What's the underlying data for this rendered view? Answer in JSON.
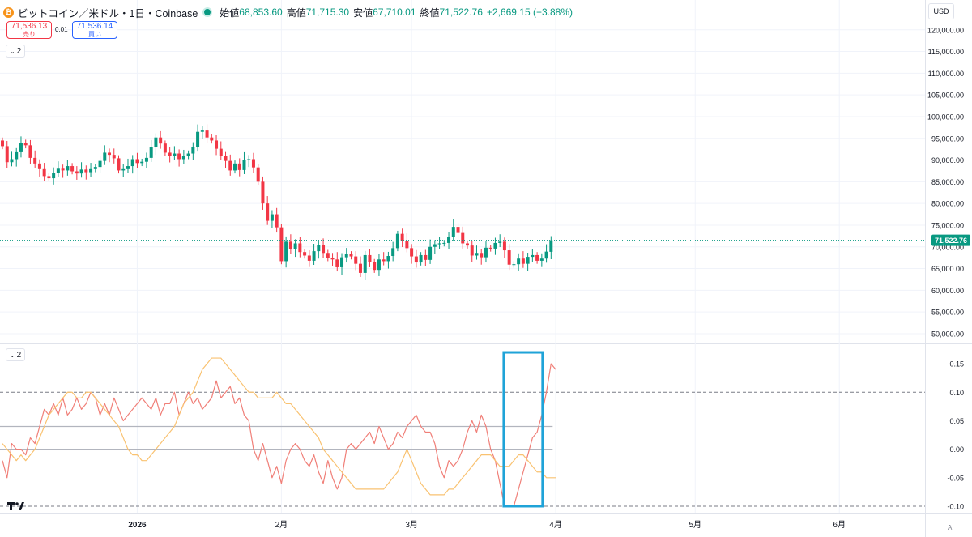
{
  "header": {
    "coin_icon": "bitcoin-icon",
    "symbol": "ビットコイン／米ドル・1日・Coinbase",
    "open_label": "始値",
    "open": "68,853.60",
    "high_label": "高値",
    "high": "71,715.30",
    "low_label": "安値",
    "low": "67,710.01",
    "close_label": "終値",
    "close": "71,522.76",
    "change": "+2,669.15 (+3.88%)"
  },
  "trade": {
    "sell_price": "71,536.13",
    "sell_label": "売り",
    "spread": "0.01",
    "buy_price": "71,536.14",
    "buy_label": "買い"
  },
  "pane_tags": {
    "main": "2",
    "indicator": "2"
  },
  "currency": "USD",
  "auto_label": "A",
  "colors": {
    "up": "#089981",
    "down": "#f23645",
    "osc_fast": "#f07f78",
    "osc_slow": "#f9c271",
    "highlight": "#1fa3d8"
  },
  "chart_data": [
    {
      "type": "candlestick",
      "price_axis_ticks": [
        "120,000.00",
        "115,000.00",
        "110,000.00",
        "105,000.00",
        "100,000.00",
        "95,000.00",
        "90,000.00",
        "85,000.00",
        "80,000.00",
        "75,000.00",
        "70,000.00",
        "65,000.00",
        "60,000.00",
        "55,000.00",
        "50,000.00"
      ],
      "ylim": [
        48500,
        123500
      ],
      "last_price": 71522.76,
      "last_price_label": "71,522.76",
      "time_axis_labels": [
        {
          "label": "2026",
          "index": 29
        },
        {
          "label": "2月",
          "index": 60
        },
        {
          "label": "3月",
          "index": 88
        },
        {
          "label": "4月",
          "index": 119
        },
        {
          "label": "5月",
          "index": 149
        },
        {
          "label": "6月",
          "index": 180
        }
      ],
      "closes": [
        93200,
        89500,
        90200,
        91800,
        94000,
        93400,
        90500,
        89200,
        87900,
        86300,
        85800,
        87100,
        88000,
        87600,
        88600,
        87400,
        86900,
        87800,
        87200,
        87900,
        88400,
        89800,
        91700,
        91200,
        90400,
        87600,
        87900,
        88600,
        90200,
        89300,
        89600,
        90500,
        92900,
        95200,
        93800,
        91700,
        90900,
        91500,
        90200,
        90900,
        91500,
        92900,
        96500,
        96800,
        95200,
        94500,
        92600,
        90900,
        89800,
        87600,
        89200,
        87700,
        90100,
        90200,
        88300,
        85000,
        80000,
        76000,
        77500,
        74500,
        66700,
        71200,
        69400,
        70800,
        68800,
        68000,
        66800,
        69000,
        70500,
        68600,
        67400,
        67100,
        65300,
        67600,
        68300,
        67800,
        66100,
        64000,
        68100,
        66500,
        64700,
        67100,
        66700,
        67900,
        69700,
        73000,
        71400,
        69700,
        67800,
        66400,
        68100,
        67000,
        70000,
        70600,
        70800,
        70900,
        72300,
        74600,
        73200,
        70800,
        70300,
        68000,
        68600,
        67600,
        69800,
        69600,
        70900,
        71200,
        69200,
        65900,
        66000,
        67300,
        66100,
        67700,
        68100,
        66800,
        67300,
        68900,
        71523
      ],
      "opens": [
        94500,
        93200,
        89500,
        90200,
        91800,
        94000,
        93400,
        90500,
        89200,
        87900,
        86300,
        85800,
        87100,
        88000,
        87600,
        88600,
        87400,
        86900,
        87800,
        87200,
        87900,
        88400,
        89800,
        91700,
        91200,
        90400,
        87600,
        87900,
        88600,
        90200,
        89300,
        89600,
        90500,
        92900,
        95200,
        93800,
        91700,
        90900,
        91500,
        90200,
        90900,
        91500,
        92900,
        96500,
        96800,
        95200,
        94500,
        92600,
        90900,
        89800,
        87600,
        89200,
        87700,
        90100,
        90200,
        88300,
        85000,
        80000,
        76000,
        77500,
        74500,
        66700,
        71200,
        69400,
        70800,
        68800,
        68000,
        66800,
        69000,
        70500,
        68600,
        67400,
        67100,
        65300,
        67600,
        68300,
        67800,
        66100,
        64000,
        68100,
        66500,
        64700,
        67100,
        66700,
        67900,
        69700,
        73000,
        71400,
        69700,
        67800,
        66400,
        68100,
        67000,
        70000,
        70600,
        70800,
        70900,
        72300,
        74600,
        73200,
        70800,
        70300,
        68000,
        68600,
        67600,
        69800,
        69600,
        70900,
        71200,
        69200,
        65900,
        66000,
        67300,
        66100,
        67700,
        68100,
        66800,
        67300,
        68854
      ]
    },
    {
      "type": "line",
      "axis_ticks": [
        "0.15",
        "0.10",
        "0.05",
        "0.00",
        "-0.05",
        "-0.10"
      ],
      "ylim": [
        -0.11,
        0.18
      ],
      "reference_lines": [
        0.1,
        0.04,
        0.0,
        -0.1
      ],
      "series": [
        {
          "values": [
            -0.02,
            -0.05,
            0.01,
            0.0,
            0.0,
            -0.01,
            0.02,
            0.01,
            0.04,
            0.07,
            0.06,
            0.08,
            0.06,
            0.09,
            0.06,
            0.07,
            0.09,
            0.07,
            0.08,
            0.1,
            0.09,
            0.06,
            0.08,
            0.06,
            0.09,
            0.07,
            0.05,
            0.06,
            0.07,
            0.08,
            0.09,
            0.08,
            0.07,
            0.09,
            0.06,
            0.08,
            0.08,
            0.1,
            0.06,
            0.08,
            0.1,
            0.08,
            0.09,
            0.07,
            0.08,
            0.09,
            0.12,
            0.09,
            0.1,
            0.11,
            0.08,
            0.09,
            0.06,
            0.05,
            0.0,
            -0.02,
            0.01,
            -0.02,
            -0.05,
            -0.03,
            -0.06,
            -0.02,
            0.0,
            0.01,
            0.0,
            -0.02,
            -0.03,
            -0.01,
            -0.04,
            -0.06,
            -0.02,
            -0.05,
            -0.07,
            -0.05,
            0.0,
            0.01,
            0.0,
            0.01,
            0.02,
            0.03,
            0.01,
            0.04,
            0.02,
            0.0,
            0.01,
            0.03,
            0.02,
            0.04,
            0.05,
            0.06,
            0.04,
            0.03,
            0.03,
            0.01,
            -0.03,
            -0.05,
            -0.02,
            -0.03,
            -0.02,
            0.0,
            0.03,
            0.05,
            0.03,
            0.06,
            0.04,
            0.0,
            -0.02,
            -0.06,
            -0.1,
            -0.1,
            -0.1,
            -0.07,
            -0.04,
            -0.01,
            0.02,
            0.03,
            0.06,
            0.1,
            0.15,
            0.14
          ],
          "color": "#f07f78"
        },
        {
          "values": [
            0.01,
            0.0,
            -0.01,
            -0.02,
            -0.01,
            -0.02,
            -0.01,
            0.0,
            0.02,
            0.04,
            0.06,
            0.07,
            0.08,
            0.09,
            0.1,
            0.1,
            0.09,
            0.09,
            0.1,
            0.1,
            0.09,
            0.08,
            0.07,
            0.06,
            0.05,
            0.04,
            0.02,
            0.0,
            -0.01,
            -0.01,
            -0.02,
            -0.02,
            -0.01,
            0.0,
            0.01,
            0.02,
            0.03,
            0.04,
            0.06,
            0.08,
            0.09,
            0.1,
            0.12,
            0.14,
            0.15,
            0.16,
            0.16,
            0.16,
            0.15,
            0.14,
            0.13,
            0.12,
            0.11,
            0.1,
            0.1,
            0.09,
            0.09,
            0.09,
            0.09,
            0.1,
            0.09,
            0.08,
            0.08,
            0.07,
            0.06,
            0.05,
            0.04,
            0.03,
            0.02,
            0.0,
            -0.01,
            -0.02,
            -0.03,
            -0.04,
            -0.05,
            -0.06,
            -0.07,
            -0.07,
            -0.07,
            -0.07,
            -0.07,
            -0.07,
            -0.07,
            -0.06,
            -0.05,
            -0.04,
            -0.02,
            0.0,
            -0.02,
            -0.04,
            -0.06,
            -0.07,
            -0.08,
            -0.08,
            -0.08,
            -0.08,
            -0.07,
            -0.07,
            -0.06,
            -0.05,
            -0.04,
            -0.03,
            -0.02,
            -0.01,
            -0.01,
            -0.01,
            -0.02,
            -0.03,
            -0.03,
            -0.03,
            -0.02,
            -0.01,
            -0.01,
            -0.02,
            -0.03,
            -0.04,
            -0.04,
            -0.05,
            -0.05,
            -0.05
          ],
          "color": "#f9c271"
        }
      ],
      "highlight_box_index_range": [
        108,
        116
      ],
      "highlight_box_ylim": [
        -0.1,
        0.17
      ]
    }
  ]
}
